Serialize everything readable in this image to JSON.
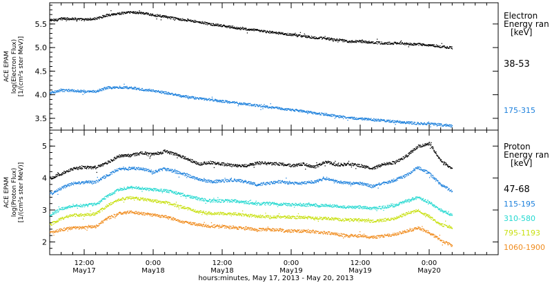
{
  "x_axis": {
    "title": "hours:minutes, May 17, 2013 - May 20, 2013",
    "ticks": [
      {
        "t": 12,
        "time": "12:00",
        "date": "May17"
      },
      {
        "t": 24,
        "time": "0:00",
        "date": "May18"
      },
      {
        "t": 36,
        "time": "12:00",
        "date": "May18"
      },
      {
        "t": 48,
        "time": "0:00",
        "date": "May19"
      },
      {
        "t": 60,
        "time": "12:00",
        "date": "May19"
      },
      {
        "t": 72,
        "time": "0:00",
        "date": "May20"
      }
    ]
  },
  "chart_data": [
    {
      "type": "scatter",
      "xlabel": "hours:minutes, May 17, 2013 - May 20, 2013",
      "ylabel": [
        "ACE EPAM",
        "log(Electron Flux)",
        "[1/(cm²s ster MeV)]"
      ],
      "xlim": [
        6,
        84
      ],
      "ylim": [
        3.25,
        5.95
      ],
      "yticks": [
        3.5,
        4.0,
        4.5,
        5.0,
        5.5
      ],
      "ytick_labels": [
        "3.5",
        "4.0",
        "4.5",
        "5.0",
        "5.5"
      ],
      "grid": false,
      "legend": {
        "title": [
          "Electron",
          "Energy ran",
          "[keV]"
        ],
        "placement": "right"
      },
      "series": [
        {
          "name": "38-53",
          "color": "#000000",
          "x": [
            6,
            8,
            10,
            12,
            14,
            16,
            18,
            20,
            22,
            24,
            26,
            28,
            30,
            32,
            34,
            36,
            38,
            40,
            42,
            44,
            46,
            48,
            50,
            52,
            54,
            56,
            58,
            60,
            62,
            64,
            66,
            68,
            70,
            72,
            74,
            76
          ],
          "y": [
            5.58,
            5.62,
            5.62,
            5.6,
            5.62,
            5.7,
            5.73,
            5.76,
            5.74,
            5.7,
            5.66,
            5.62,
            5.59,
            5.55,
            5.5,
            5.47,
            5.43,
            5.4,
            5.37,
            5.34,
            5.31,
            5.28,
            5.25,
            5.22,
            5.2,
            5.17,
            5.14,
            5.14,
            5.12,
            5.1,
            5.1,
            5.09,
            5.08,
            5.06,
            5.03,
            5.0
          ]
        },
        {
          "name": "175-315",
          "color": "#1a7fdc",
          "x": [
            6,
            8,
            10,
            12,
            14,
            16,
            18,
            20,
            22,
            24,
            26,
            28,
            30,
            32,
            34,
            36,
            38,
            40,
            42,
            44,
            46,
            48,
            50,
            52,
            54,
            56,
            58,
            60,
            62,
            64,
            66,
            68,
            70,
            72,
            74,
            76
          ],
          "y": [
            4.05,
            4.1,
            4.1,
            4.07,
            4.08,
            4.16,
            4.17,
            4.16,
            4.12,
            4.09,
            4.05,
            4.0,
            3.96,
            3.93,
            3.9,
            3.87,
            3.84,
            3.81,
            3.78,
            3.75,
            3.72,
            3.69,
            3.66,
            3.62,
            3.59,
            3.55,
            3.52,
            3.5,
            3.48,
            3.46,
            3.44,
            3.42,
            3.4,
            3.39,
            3.37,
            3.35
          ]
        }
      ]
    },
    {
      "type": "scatter",
      "xlabel": "hours:minutes, May 17, 2013 - May 20, 2013",
      "ylabel": [
        "ACE EPAM",
        "log(Proton Flux)",
        "[1/(cm²s ster MeV)]"
      ],
      "xlim": [
        6,
        84
      ],
      "ylim": [
        1.6,
        5.5
      ],
      "yticks": [
        2,
        3,
        4,
        5
      ],
      "ytick_labels": [
        "2",
        "3",
        "4",
        "5"
      ],
      "grid": false,
      "legend": {
        "title": [
          "Proton",
          "Energy ran",
          "[keV]"
        ],
        "placement": "right"
      },
      "series": [
        {
          "name": "47-68",
          "color": "#000000",
          "x": [
            6,
            8,
            10,
            12,
            14,
            16,
            18,
            20,
            22,
            24,
            26,
            28,
            30,
            32,
            34,
            36,
            38,
            40,
            42,
            44,
            46,
            48,
            50,
            52,
            54,
            56,
            58,
            60,
            62,
            64,
            66,
            68,
            70,
            72,
            74,
            76
          ],
          "y": [
            4.0,
            4.15,
            4.3,
            4.35,
            4.33,
            4.5,
            4.7,
            4.72,
            4.8,
            4.75,
            4.85,
            4.75,
            4.6,
            4.45,
            4.5,
            4.45,
            4.4,
            4.4,
            4.48,
            4.47,
            4.45,
            4.4,
            4.45,
            4.35,
            4.52,
            4.42,
            4.45,
            4.4,
            4.3,
            4.45,
            4.5,
            4.7,
            5.0,
            5.1,
            4.55,
            4.3
          ]
        },
        {
          "name": "115-195",
          "color": "#1a7fdc",
          "x": [
            6,
            8,
            10,
            12,
            14,
            16,
            18,
            20,
            22,
            24,
            26,
            28,
            30,
            32,
            34,
            36,
            38,
            40,
            42,
            44,
            46,
            48,
            50,
            52,
            54,
            56,
            58,
            60,
            62,
            64,
            66,
            68,
            70,
            72,
            74,
            76
          ],
          "y": [
            3.5,
            3.7,
            3.85,
            3.88,
            3.9,
            4.1,
            4.3,
            4.32,
            4.3,
            4.2,
            4.3,
            4.2,
            4.1,
            3.95,
            3.9,
            3.92,
            3.95,
            3.9,
            3.8,
            3.85,
            3.9,
            3.85,
            3.85,
            3.9,
            4.0,
            3.9,
            3.85,
            3.85,
            3.75,
            3.85,
            3.95,
            4.1,
            4.35,
            4.15,
            3.8,
            3.6
          ]
        },
        {
          "name": "310-580",
          "color": "#22d8d0",
          "x": [
            6,
            8,
            10,
            12,
            14,
            16,
            18,
            20,
            22,
            24,
            26,
            28,
            30,
            32,
            34,
            36,
            38,
            40,
            42,
            44,
            46,
            48,
            50,
            52,
            54,
            56,
            58,
            60,
            62,
            64,
            66,
            68,
            70,
            72,
            74,
            76
          ],
          "y": [
            2.85,
            3.05,
            3.15,
            3.15,
            3.2,
            3.45,
            3.65,
            3.72,
            3.68,
            3.65,
            3.62,
            3.55,
            3.45,
            3.35,
            3.3,
            3.3,
            3.3,
            3.25,
            3.2,
            3.22,
            3.2,
            3.18,
            3.18,
            3.15,
            3.15,
            3.12,
            3.1,
            3.1,
            3.05,
            3.1,
            3.15,
            3.3,
            3.4,
            3.25,
            3.0,
            2.85
          ]
        },
        {
          "name": "795-1193",
          "color": "#c8e010",
          "x": [
            6,
            8,
            10,
            12,
            14,
            16,
            18,
            20,
            22,
            24,
            26,
            28,
            30,
            32,
            34,
            36,
            38,
            40,
            42,
            44,
            46,
            48,
            50,
            52,
            54,
            56,
            58,
            60,
            62,
            64,
            66,
            68,
            70,
            72,
            74,
            76
          ],
          "y": [
            2.55,
            2.75,
            2.85,
            2.85,
            2.9,
            3.15,
            3.35,
            3.4,
            3.35,
            3.3,
            3.25,
            3.15,
            3.05,
            2.95,
            2.9,
            2.9,
            2.9,
            2.85,
            2.82,
            2.8,
            2.8,
            2.78,
            2.78,
            2.76,
            2.75,
            2.72,
            2.7,
            2.7,
            2.65,
            2.7,
            2.75,
            2.9,
            3.0,
            2.8,
            2.55,
            2.45
          ]
        },
        {
          "name": "1060-1900",
          "color": "#f08b1c",
          "x": [
            6,
            8,
            10,
            12,
            14,
            16,
            18,
            20,
            22,
            24,
            26,
            28,
            30,
            32,
            34,
            36,
            38,
            40,
            42,
            44,
            46,
            48,
            50,
            52,
            54,
            56,
            58,
            60,
            62,
            64,
            66,
            68,
            70,
            72,
            74,
            76
          ],
          "y": [
            2.3,
            2.4,
            2.45,
            2.45,
            2.5,
            2.75,
            2.9,
            2.95,
            2.9,
            2.85,
            2.8,
            2.7,
            2.6,
            2.55,
            2.5,
            2.5,
            2.45,
            2.45,
            2.4,
            2.4,
            2.38,
            2.35,
            2.35,
            2.32,
            2.3,
            2.25,
            2.2,
            2.2,
            2.15,
            2.2,
            2.25,
            2.35,
            2.45,
            2.3,
            2.05,
            1.9
          ]
        }
      ]
    }
  ]
}
